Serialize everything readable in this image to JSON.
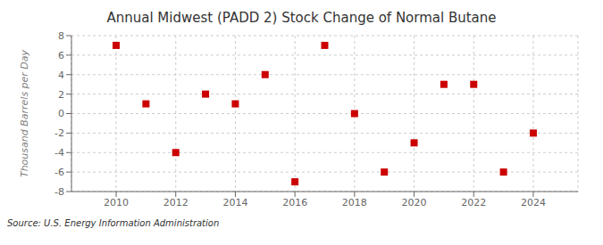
{
  "chart_data": {
    "type": "scatter",
    "title": "Annual Midwest (PADD 2) Stock Change of Normal Butane",
    "ylabel": "Thousand Barrels per Day",
    "annotations": [
      "Source: U.S. Energy Information Administration"
    ],
    "x": [
      2010,
      2011,
      2012,
      2013,
      2014,
      2015,
      2016,
      2017,
      2018,
      2019,
      2020,
      2021,
      2022,
      2023,
      2024
    ],
    "values": [
      7.0,
      1.0,
      -4.0,
      2.0,
      1.0,
      4.0,
      -7.0,
      7.0,
      0.0,
      -6.0,
      -3.0,
      3.0,
      3.0,
      -6.0,
      -2.0
    ],
    "color": "#cc0000",
    "marker": "square",
    "xlim": [
      2008.5,
      2025.5
    ],
    "ylim": [
      -8,
      8
    ],
    "xticks": [
      2010,
      2012,
      2014,
      2016,
      2018,
      2020,
      2022,
      2024
    ],
    "yticks": [
      -8,
      -6,
      -4,
      -2,
      0,
      2,
      4,
      6,
      8
    ],
    "grid": true
  }
}
